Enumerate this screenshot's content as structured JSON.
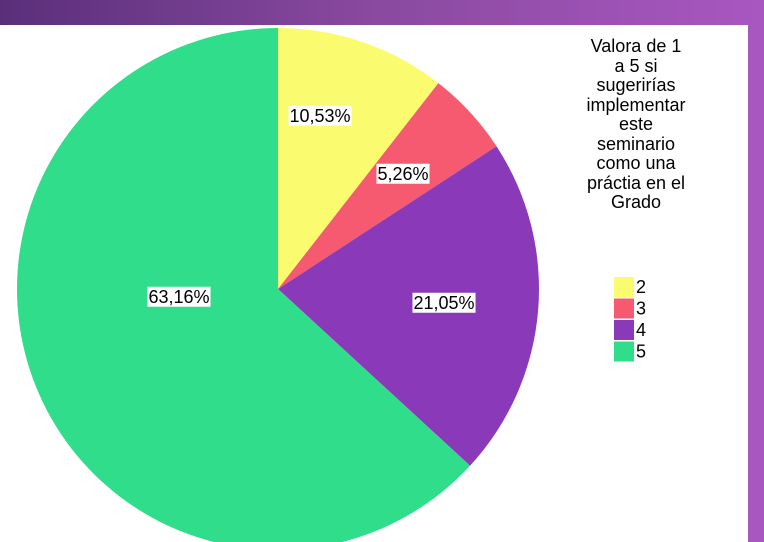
{
  "chart_data": {
    "type": "pie",
    "legend_title": "Valora de 1 a 5 si sugerirías implementar este seminario como una práctia en el Grado",
    "categories": [
      "2",
      "3",
      "4",
      "5"
    ],
    "values": [
      10.53,
      5.26,
      21.05,
      63.16
    ],
    "value_labels": [
      "10,53%",
      "5,26%",
      "21,05%",
      "63,16%"
    ],
    "colors": [
      "#fbfb70",
      "#f55a70",
      "#8a3ab8",
      "#2fdd8a"
    ],
    "legend": "right"
  }
}
